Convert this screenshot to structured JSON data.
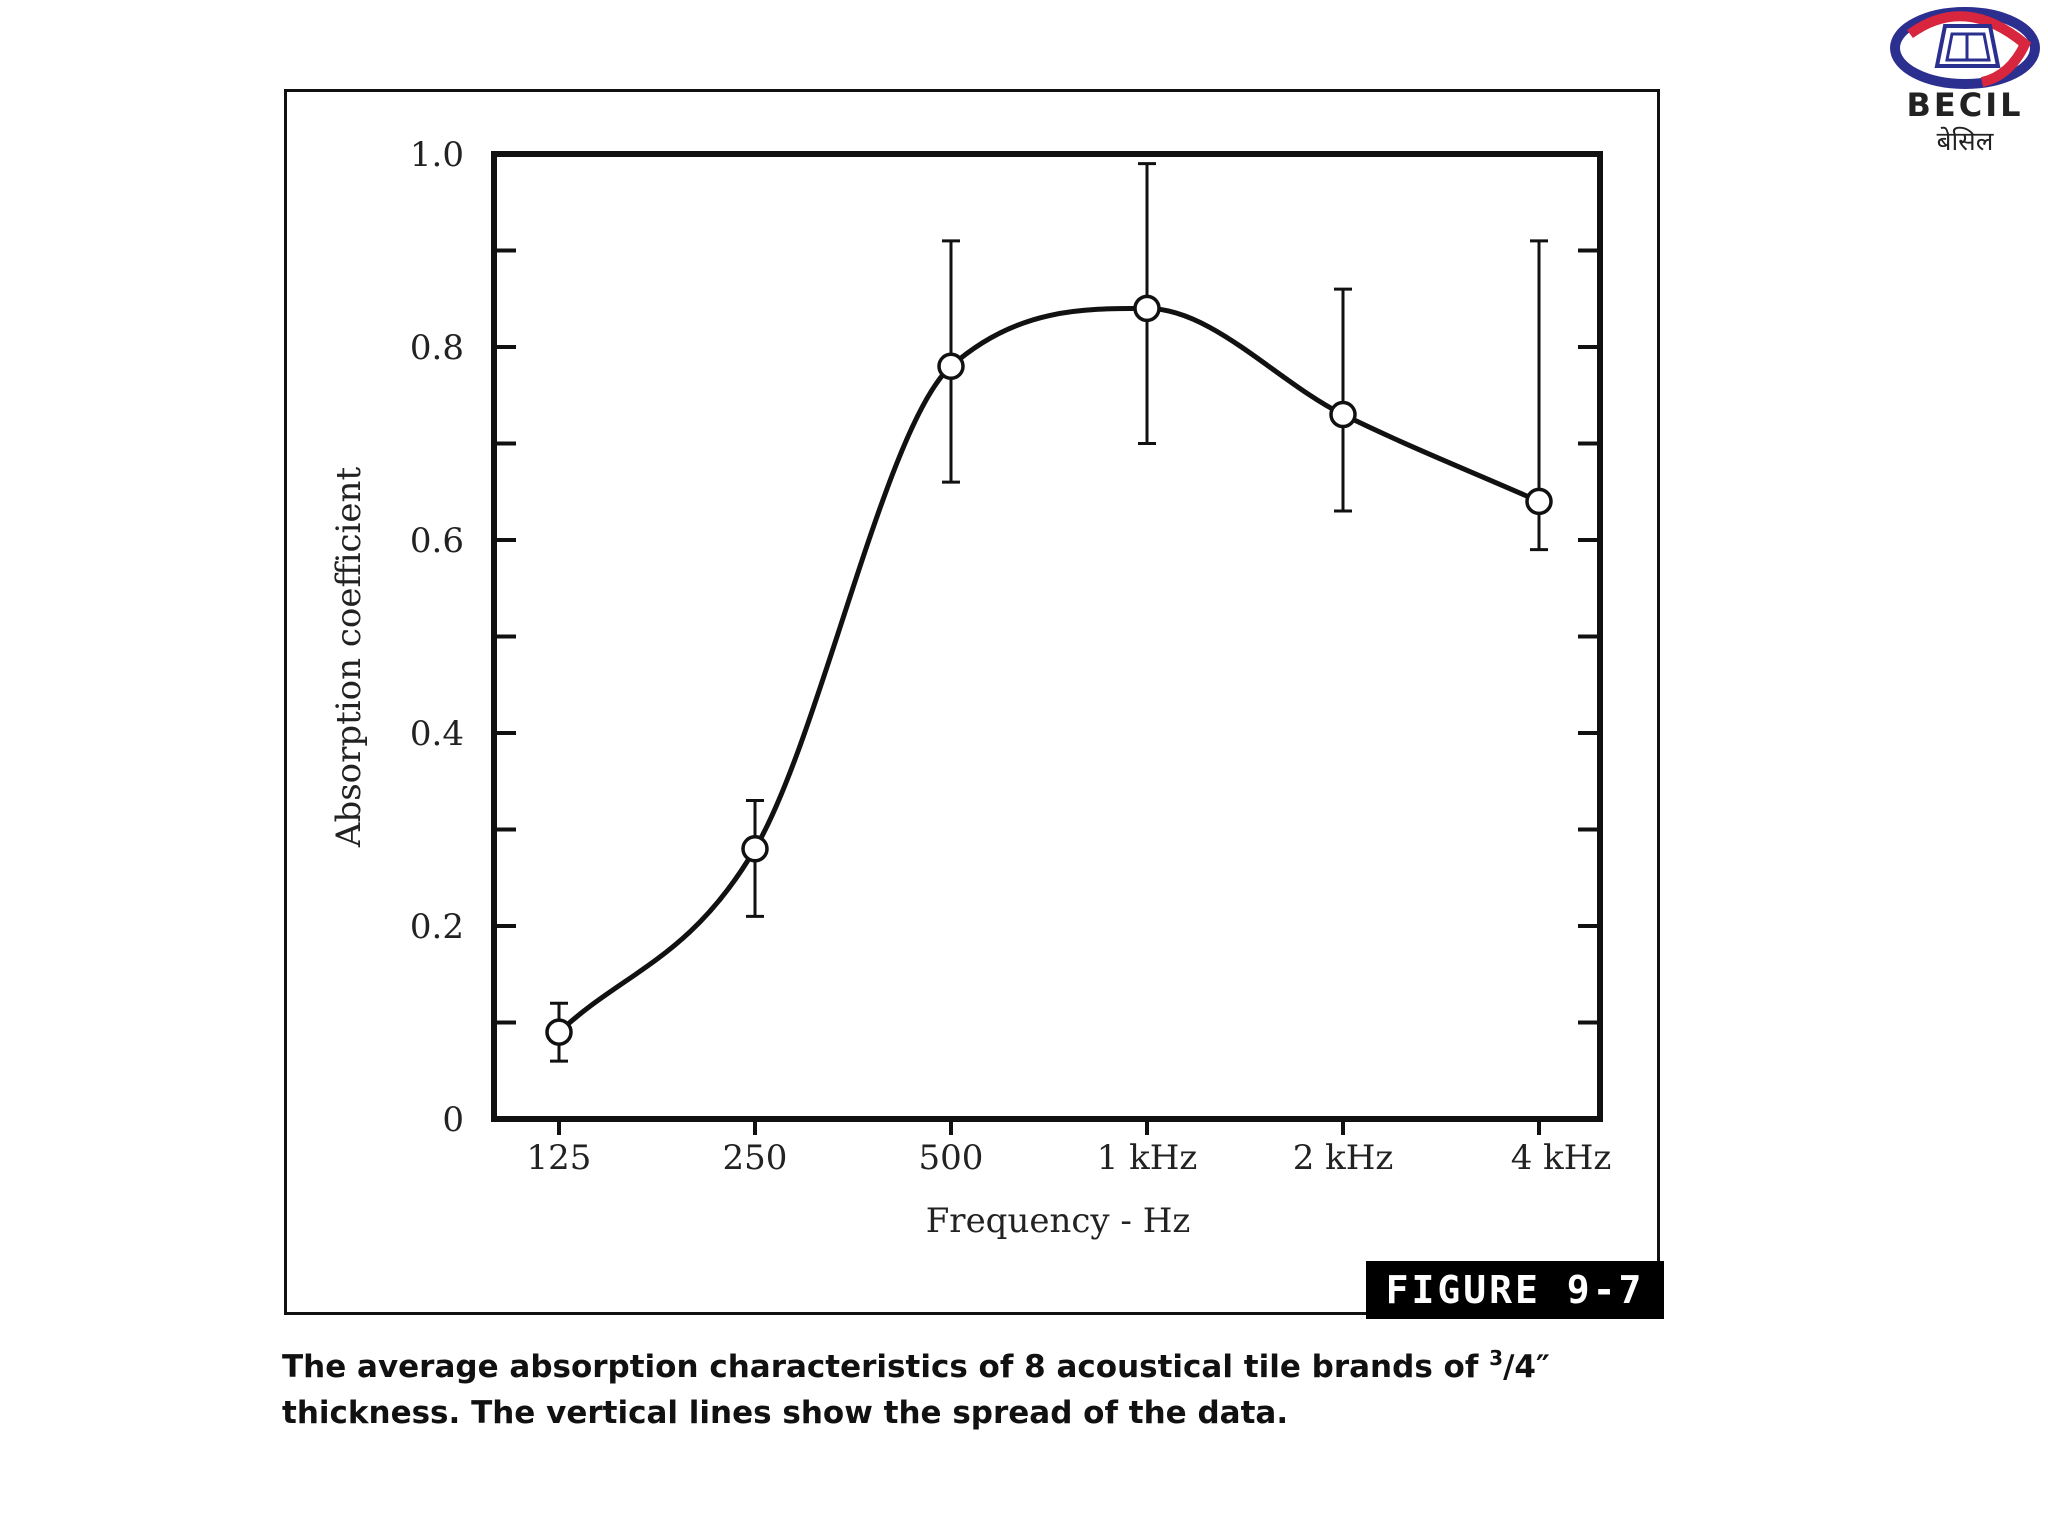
{
  "logo": {
    "name": "BECIL",
    "hindi_name": "बेसिल",
    "icon": "becil-logo-icon",
    "colors": {
      "blue": "#2b2f8f",
      "red": "#d7263d"
    }
  },
  "figure": {
    "label": "FIGURE 9-7",
    "caption": {
      "before": "The average absorption characteristics of 8 acoustical tile brands of ",
      "numerator": "3",
      "after": "/4″ thickness. The vertical lines show the spread of the data."
    }
  },
  "chart_data": {
    "type": "line",
    "categories": [
      "125",
      "250",
      "500",
      "1 kHz",
      "2 kHz",
      "4 kHz"
    ],
    "values": [
      0.09,
      0.28,
      0.78,
      0.84,
      0.73,
      0.64
    ],
    "error_low": [
      0.06,
      0.21,
      0.66,
      0.7,
      0.63,
      0.59
    ],
    "error_high": [
      0.12,
      0.33,
      0.91,
      0.99,
      0.86,
      0.91
    ],
    "xlabel": "Frequency - Hz",
    "ylabel": "Absorption coefficient",
    "ylim": [
      0,
      1.0
    ],
    "yticks": [
      "0",
      "0.2",
      "0.4",
      "0.6",
      "0.8",
      "1.0"
    ],
    "grid": false,
    "marker": "open-circle"
  }
}
